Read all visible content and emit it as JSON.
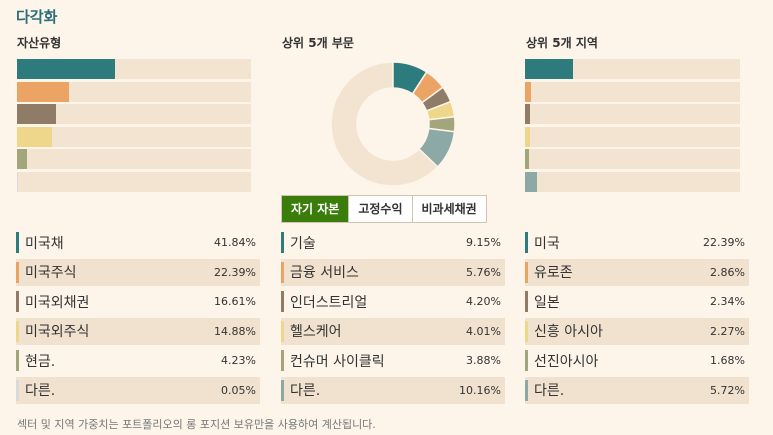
{
  "title": "다각화",
  "asset_type": {
    "heading": "자산유형",
    "bar_values": [
      41.84,
      22.39,
      16.61,
      14.88,
      4.23,
      0.05
    ],
    "colors": [
      "#2e7b7d",
      "#eca465",
      "#8f7b66",
      "#eed78b",
      "#a3a57a",
      "#d9d9d9"
    ],
    "items": [
      {
        "label": "미국채",
        "value": "41.84%"
      },
      {
        "label": "미국주식",
        "value": "22.39%"
      },
      {
        "label": "미국외채권",
        "value": "16.61%"
      },
      {
        "label": "미국외주식",
        "value": "14.88%"
      },
      {
        "label": "현금.",
        "value": "4.23%"
      },
      {
        "label": "다른.",
        "value": "0.05%"
      }
    ]
  },
  "sectors": {
    "heading": "상위 5개 부문",
    "tabs": [
      "자기 자본",
      "고정수익",
      "비과세채권"
    ],
    "active_tab": 0,
    "colors": [
      "#2e7b7d",
      "#eca465",
      "#8f7b66",
      "#eed78b",
      "#a3a57a",
      "#8da9a6"
    ],
    "items": [
      {
        "label": "기술",
        "value": "9.15%"
      },
      {
        "label": "금융 서비스",
        "value": "5.76%"
      },
      {
        "label": "인더스트리얼",
        "value": "4.20%"
      },
      {
        "label": "헬스케어",
        "value": "4.01%"
      },
      {
        "label": "컨슈머 사이클릭",
        "value": "3.88%"
      },
      {
        "label": "다른.",
        "value": "10.16%"
      }
    ],
    "donut_values": [
      9.15,
      5.76,
      4.2,
      4.01,
      3.88,
      10.16
    ],
    "donut_remainder_color": "#f3e4d1"
  },
  "regions": {
    "heading": "상위 5개 지역",
    "bar_values": [
      22.39,
      2.86,
      2.34,
      2.27,
      1.68,
      5.72
    ],
    "colors": [
      "#2e7b7d",
      "#eca465",
      "#8f7b66",
      "#eed78b",
      "#a3a57a",
      "#8da9a6"
    ],
    "items": [
      {
        "label": "미국",
        "value": "22.39%"
      },
      {
        "label": "유로존",
        "value": "2.86%"
      },
      {
        "label": "일본",
        "value": "2.34%"
      },
      {
        "label": "신흥 아시아",
        "value": "2.27%"
      },
      {
        "label": "선진아시아",
        "value": "1.68%"
      },
      {
        "label": "다른.",
        "value": "5.72%"
      }
    ]
  },
  "footnote": "섹터 및 지역 가중치는 포트폴리오의 롱 포지션 보유만을 사용하여 계산됩니다."
}
